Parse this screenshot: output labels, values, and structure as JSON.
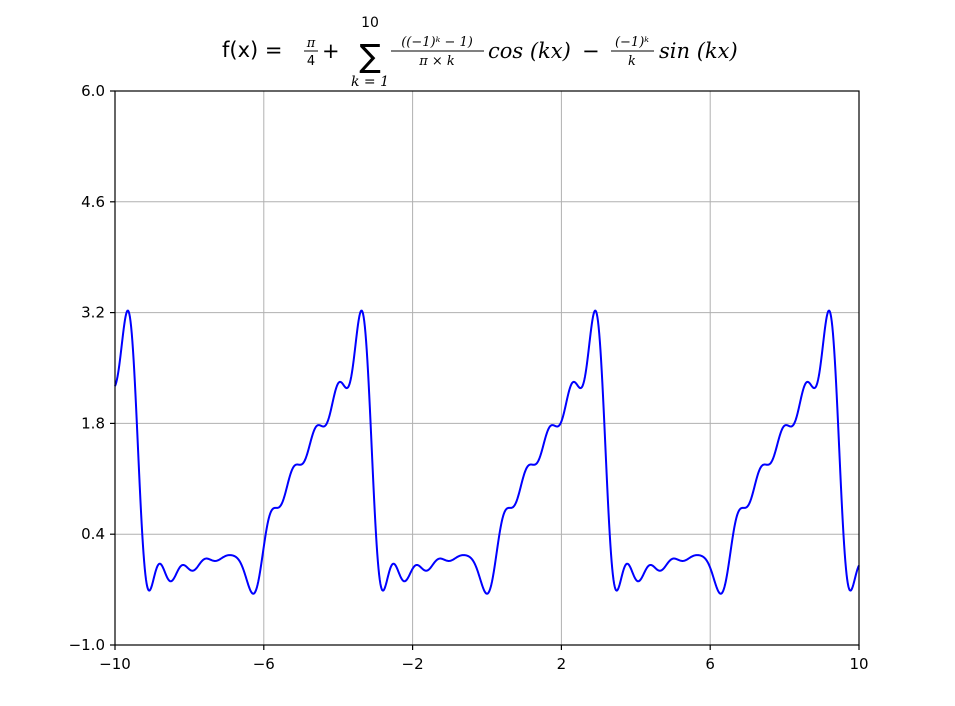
{
  "chart_data": {
    "type": "line",
    "title": {
      "lhs": "f(x) = ",
      "const_num": "π",
      "const_den": "4",
      "plus": "+",
      "sum_symbol": "∑",
      "sum_upper": "10",
      "sum_lower": "k = 1",
      "cos_num": "((−1)ᵏ − 1)",
      "cos_den": "π × k",
      "cos_term": "cos (kx)",
      "minus": "−",
      "sin_num": "(−1)ᵏ",
      "sin_den": "k",
      "sin_term": "sin (kx)"
    },
    "series": [
      {
        "name": "f(x)",
        "color": "#0000ff",
        "formula": "pi/4 + sum_{k=1}^{10} ((-1)^k - 1)/(pi*k) * cos(k*x) - (-1)^k/k * sin(k*x)",
        "k_max": 10,
        "x_range": [
          -10,
          10
        ],
        "samples": 1200
      }
    ],
    "xlim": [
      -10,
      10
    ],
    "ylim": [
      -1.0,
      6.0
    ],
    "xticks": [
      -10,
      -6,
      -2,
      2,
      6,
      10
    ],
    "xtick_labels": [
      "−10",
      "−6",
      "−2",
      "2",
      "6",
      "10"
    ],
    "yticks": [
      -1.0,
      0.4,
      1.8,
      3.2,
      4.6,
      6.0
    ],
    "ytick_labels": [
      "−1.0",
      "0.4",
      "1.8",
      "3.2",
      "4.6",
      "6.0"
    ],
    "grid": true,
    "xlabel": "",
    "ylabel": ""
  },
  "colors": {
    "line": "#0000ff",
    "grid": "#b0b0b0",
    "axes": "#000000",
    "background": "#ffffff"
  }
}
